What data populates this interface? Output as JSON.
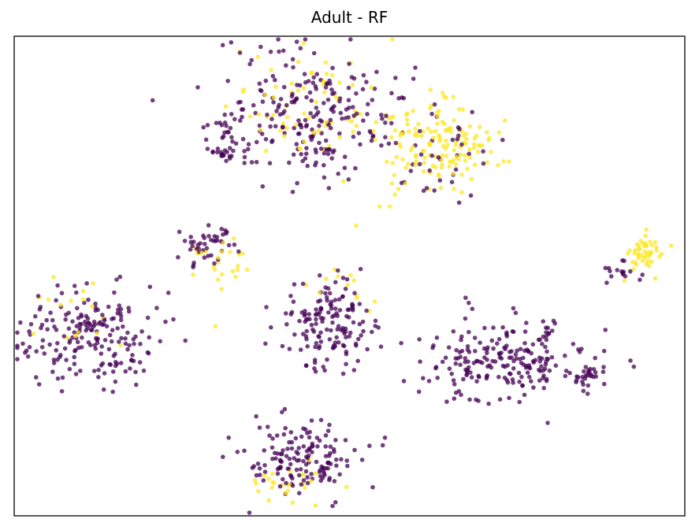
{
  "chart_data": {
    "type": "scatter",
    "title": "Adult - RF",
    "xlabel": "",
    "ylabel": "",
    "xlim": [
      0,
      100
    ],
    "ylim": [
      0,
      100
    ],
    "ticks_visible": false,
    "grid": false,
    "legend": "none",
    "colors": {
      "class_0": "#440154",
      "class_1": "#fde725"
    },
    "point_alpha": 0.75,
    "clusters": [
      {
        "name": "top-center-purple",
        "class": 0,
        "cx": 44.0,
        "cy": 84.0,
        "sx": 7.5,
        "sy": 6.5,
        "n": 230,
        "seed": 11
      },
      {
        "name": "top-center-yellow",
        "class": 1,
        "cx": 45.0,
        "cy": 85.0,
        "sx": 7.0,
        "sy": 6.0,
        "n": 75,
        "seed": 12
      },
      {
        "name": "top-left-small-purple",
        "class": 0,
        "cx": 31.0,
        "cy": 76.0,
        "sx": 1.2,
        "sy": 1.2,
        "n": 22,
        "seed": 13
      },
      {
        "name": "top-left-tail-purple",
        "class": 0,
        "cx": 32.5,
        "cy": 81.0,
        "sx": 1.0,
        "sy": 2.0,
        "n": 12,
        "seed": 14
      },
      {
        "name": "top-right-yellow",
        "class": 1,
        "cx": 64.5,
        "cy": 77.0,
        "sx": 4.5,
        "sy": 4.5,
        "n": 145,
        "seed": 15
      },
      {
        "name": "top-right-purple",
        "class": 0,
        "cx": 63.0,
        "cy": 75.0,
        "sx": 4.5,
        "sy": 4.5,
        "n": 38,
        "seed": 16
      },
      {
        "name": "upper-left-purple",
        "class": 0,
        "cx": 29.0,
        "cy": 56.5,
        "sx": 2.0,
        "sy": 2.5,
        "n": 45,
        "seed": 17
      },
      {
        "name": "upper-left-yellow",
        "class": 1,
        "cx": 30.5,
        "cy": 53.0,
        "sx": 2.0,
        "sy": 2.5,
        "n": 24,
        "seed": 18
      },
      {
        "name": "left-purple",
        "class": 0,
        "cx": 11.5,
        "cy": 37.0,
        "sx": 5.5,
        "sy": 5.0,
        "n": 195,
        "seed": 19
      },
      {
        "name": "left-yellow",
        "class": 1,
        "cx": 8.5,
        "cy": 42.0,
        "sx": 3.5,
        "sy": 3.0,
        "n": 16,
        "seed": 20
      },
      {
        "name": "center-purple",
        "class": 0,
        "cx": 47.0,
        "cy": 40.0,
        "sx": 3.5,
        "sy": 5.0,
        "n": 150,
        "seed": 21
      },
      {
        "name": "center-yellow",
        "class": 1,
        "cx": 48.0,
        "cy": 48.0,
        "sx": 2.5,
        "sy": 2.5,
        "n": 12,
        "seed": 22
      },
      {
        "name": "bottom-purple",
        "class": 0,
        "cx": 42.5,
        "cy": 12.0,
        "sx": 4.0,
        "sy": 3.5,
        "n": 150,
        "seed": 23
      },
      {
        "name": "bottom-yellow",
        "class": 1,
        "cx": 41.5,
        "cy": 7.5,
        "sx": 3.0,
        "sy": 2.0,
        "n": 26,
        "seed": 24
      },
      {
        "name": "right-purple",
        "class": 0,
        "cx": 73.0,
        "cy": 32.0,
        "sx": 6.5,
        "sy": 4.5,
        "n": 220,
        "seed": 25
      },
      {
        "name": "right-small-purple",
        "class": 0,
        "cx": 85.5,
        "cy": 29.0,
        "sx": 0.8,
        "sy": 1.0,
        "n": 22,
        "seed": 26
      },
      {
        "name": "far-right-yellow",
        "class": 1,
        "cx": 94.0,
        "cy": 54.5,
        "sx": 1.2,
        "sy": 2.0,
        "n": 48,
        "seed": 27
      },
      {
        "name": "far-right-purple",
        "class": 0,
        "cx": 91.0,
        "cy": 51.0,
        "sx": 2.0,
        "sy": 1.2,
        "n": 16,
        "seed": 28
      }
    ],
    "outliers": [
      {
        "x": 30.0,
        "y": 39.5,
        "class": 1
      },
      {
        "x": 51.0,
        "y": 60.5,
        "class": 1
      },
      {
        "x": 54.5,
        "y": 64.5,
        "class": 1
      },
      {
        "x": 56.0,
        "y": 64.5,
        "class": 1
      },
      {
        "x": 23.0,
        "y": 46.5,
        "class": 0
      }
    ]
  }
}
